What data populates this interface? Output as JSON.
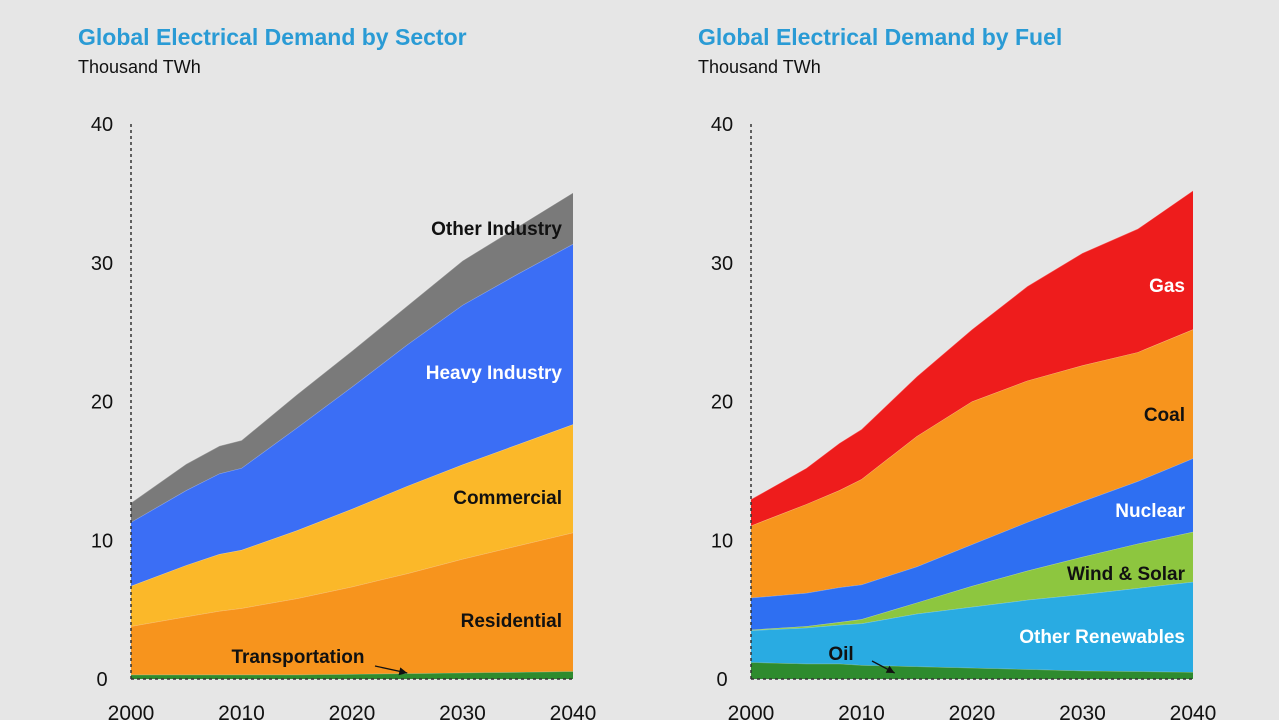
{
  "chart_data": [
    {
      "type": "area",
      "stacked": true,
      "title": "Global Electrical Demand by Sector",
      "subtitle": "Thousand TWh",
      "x": [
        2000,
        2005,
        2008,
        2010,
        2015,
        2020,
        2025,
        2030,
        2035,
        2040
      ],
      "xticks": [
        "2000",
        "2010",
        "2020",
        "2030",
        "2040"
      ],
      "yticks": [
        "0",
        "10",
        "20",
        "30",
        "40"
      ],
      "xlim": [
        2000,
        2040
      ],
      "ylim": [
        0,
        40
      ],
      "grid": false,
      "series": [
        {
          "name": "Transportation",
          "color": "#2e8b2e",
          "label_color": "#111111",
          "values": [
            0.3,
            0.3,
            0.3,
            0.3,
            0.3,
            0.35,
            0.4,
            0.45,
            0.5,
            0.55
          ]
        },
        {
          "name": "Residential",
          "color": "#f7941d",
          "label_color": "#111111",
          "values": [
            3.5,
            4.2,
            4.6,
            4.8,
            5.5,
            6.3,
            7.2,
            8.2,
            9.1,
            10.0
          ]
        },
        {
          "name": "Commercial",
          "color": "#fbb829",
          "label_color": "#111111",
          "values": [
            2.9,
            3.7,
            4.1,
            4.2,
            4.9,
            5.6,
            6.3,
            6.8,
            7.3,
            7.8
          ]
        },
        {
          "name": "Heavy Industry",
          "color": "#3b6ef5",
          "label_color": "#ffffff",
          "values": [
            4.6,
            5.4,
            5.8,
            5.9,
            7.4,
            8.8,
            10.2,
            11.5,
            12.3,
            13.0
          ]
        },
        {
          "name": "Other Industry",
          "color": "#7a7a7a",
          "label_color": "#111111",
          "values": [
            1.4,
            1.9,
            2.0,
            2.0,
            2.4,
            2.6,
            2.8,
            3.2,
            3.4,
            3.7
          ]
        }
      ],
      "annotations": [
        "Transportation"
      ]
    },
    {
      "type": "area",
      "stacked": true,
      "title": "Global Electrical Demand by Fuel",
      "subtitle": "Thousand TWh",
      "x": [
        2000,
        2005,
        2008,
        2010,
        2015,
        2020,
        2025,
        2030,
        2035,
        2040
      ],
      "xticks": [
        "2000",
        "2010",
        "2020",
        "2030",
        "2040"
      ],
      "yticks": [
        "0",
        "10",
        "20",
        "30",
        "40"
      ],
      "xlim": [
        2000,
        2040
      ],
      "ylim": [
        0,
        40
      ],
      "grid": false,
      "series": [
        {
          "name": "Oil",
          "color": "#2e8b2e",
          "label_color": "#111111",
          "values": [
            1.2,
            1.1,
            1.1,
            1.0,
            0.9,
            0.8,
            0.7,
            0.6,
            0.55,
            0.5
          ]
        },
        {
          "name": "Other Renewables",
          "color": "#29abe2",
          "label_color": "#ffffff",
          "values": [
            2.3,
            2.6,
            2.8,
            3.0,
            3.8,
            4.4,
            5.0,
            5.5,
            6.0,
            6.5
          ]
        },
        {
          "name": "Wind & Solar",
          "color": "#8dc63f",
          "label_color": "#111111",
          "values": [
            0.05,
            0.1,
            0.2,
            0.3,
            0.8,
            1.5,
            2.1,
            2.7,
            3.2,
            3.6
          ]
        },
        {
          "name": "Nuclear",
          "color": "#2e6ff2",
          "label_color": "#ffffff",
          "values": [
            2.3,
            2.4,
            2.5,
            2.5,
            2.6,
            3.0,
            3.5,
            4.0,
            4.5,
            5.3
          ]
        },
        {
          "name": "Coal",
          "color": "#f7941d",
          "label_color": "#111111",
          "values": [
            5.2,
            6.4,
            7.0,
            7.6,
            9.4,
            10.3,
            10.2,
            9.8,
            9.3,
            9.3
          ]
        },
        {
          "name": "Gas",
          "color": "#ee1c1c",
          "label_color": "#ffffff",
          "values": [
            1.9,
            2.6,
            3.4,
            3.6,
            4.3,
            5.2,
            6.8,
            8.1,
            8.9,
            10.0
          ]
        }
      ],
      "annotations": [
        "Oil"
      ]
    }
  ]
}
